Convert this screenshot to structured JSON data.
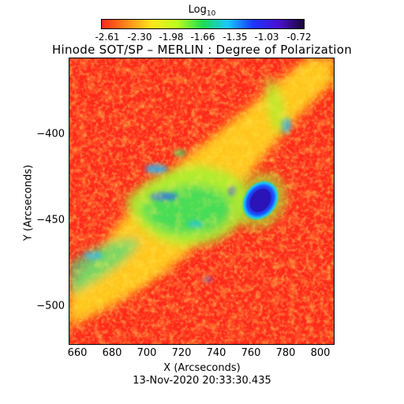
{
  "title": "Hinode SOT/SP – MERLIN : Degree of Polarization",
  "colorbar": {
    "label_main": "Log",
    "label_sub": "10",
    "ticks": [
      "-2.61",
      "-2.30",
      "-1.98",
      "-1.66",
      "-1.35",
      "-1.03",
      "-0.72"
    ],
    "colors": [
      "#ff2a1a",
      "#ff8a1a",
      "#ffe81a",
      "#b8ff20",
      "#1edc50",
      "#18c8ff",
      "#1a36ff",
      "#4a10d0",
      "#1a0638"
    ]
  },
  "axes": {
    "xlabel": "X (Arcseconds)",
    "ylabel": "Y (Arcseconds)",
    "xticks": [
      "660",
      "680",
      "700",
      "720",
      "740",
      "760",
      "780",
      "800"
    ],
    "yticks": [
      "−400",
      "−450",
      "−500"
    ]
  },
  "timestamp": "13-Nov-2020 20:33:30.435"
}
